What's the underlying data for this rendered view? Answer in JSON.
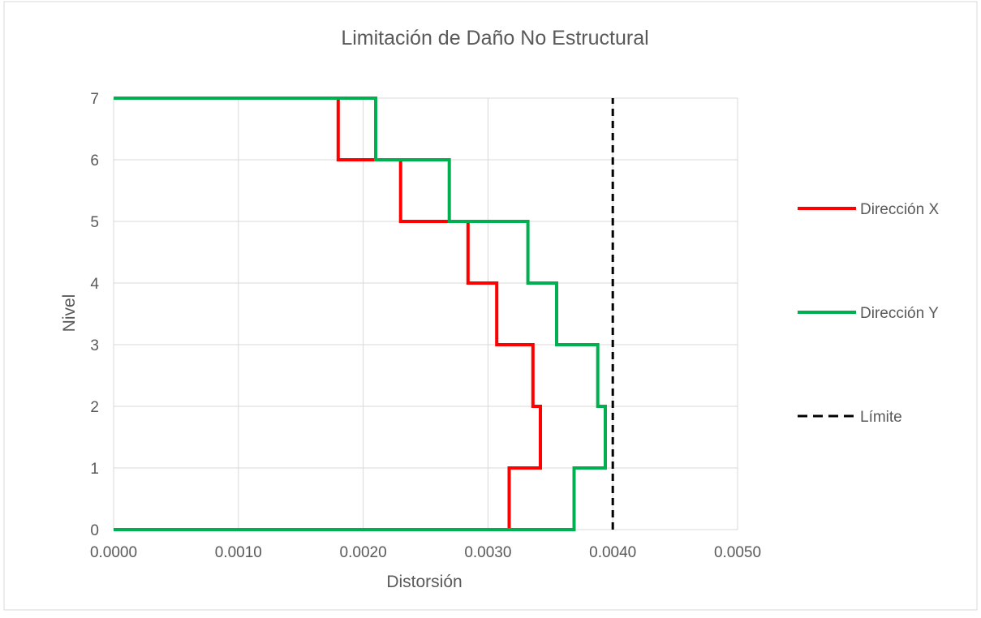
{
  "chart_data": {
    "type": "line",
    "title": "Limitación de Daño No Estructural",
    "xlabel": "Distorsión",
    "ylabel": "Nivel",
    "xlim": [
      0,
      0.005
    ],
    "ylim": [
      0,
      7
    ],
    "x_ticks": [
      "0.0000",
      "0.0010",
      "0.0020",
      "0.0030",
      "0.0040",
      "0.0050"
    ],
    "y_ticks": [
      "0",
      "1",
      "2",
      "3",
      "4",
      "5",
      "6",
      "7"
    ],
    "grid": true,
    "legend_position": "right",
    "series": [
      {
        "name": "Dirección X",
        "color": "#ff0000",
        "style": "solid",
        "points": [
          [
            0,
            0
          ],
          [
            0.00317,
            0
          ],
          [
            0.00317,
            1
          ],
          [
            0.00342,
            1
          ],
          [
            0.00342,
            2
          ],
          [
            0.00336,
            2
          ],
          [
            0.00336,
            3
          ],
          [
            0.00307,
            3
          ],
          [
            0.00307,
            4
          ],
          [
            0.00284,
            4
          ],
          [
            0.00284,
            5
          ],
          [
            0.0023,
            5
          ],
          [
            0.0023,
            6
          ],
          [
            0.0018,
            6
          ],
          [
            0.0018,
            7
          ],
          [
            0,
            7
          ]
        ]
      },
      {
        "name": "Dirección Y",
        "color": "#00b050",
        "style": "solid",
        "points": [
          [
            0,
            0
          ],
          [
            0.00369,
            0
          ],
          [
            0.00369,
            1
          ],
          [
            0.00394,
            1
          ],
          [
            0.00394,
            2
          ],
          [
            0.00388,
            2
          ],
          [
            0.00388,
            3
          ],
          [
            0.00355,
            3
          ],
          [
            0.00355,
            4
          ],
          [
            0.00332,
            4
          ],
          [
            0.00332,
            5
          ],
          [
            0.00269,
            5
          ],
          [
            0.00269,
            6
          ],
          [
            0.0021,
            6
          ],
          [
            0.0021,
            7
          ],
          [
            0,
            7
          ]
        ]
      },
      {
        "name": "Límite",
        "color": "#000000",
        "style": "dashed",
        "points": [
          [
            0.004,
            0
          ],
          [
            0.004,
            7
          ]
        ]
      }
    ]
  }
}
